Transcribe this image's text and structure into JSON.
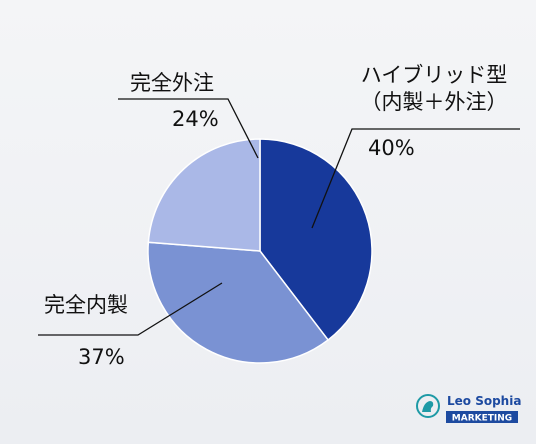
{
  "chart_data": {
    "type": "pie",
    "categories": [
      "ハイブリッド型（内製＋外注）",
      "完全内製",
      "完全外注"
    ],
    "values": [
      40,
      37,
      24
    ],
    "value_labels": [
      "40%",
      "37%",
      "24%"
    ],
    "colors": [
      "#17399b",
      "#7a92d3",
      "#aab8e7"
    ]
  },
  "brand": {
    "name": "Leo Sophia",
    "tagline": "MARKETING"
  }
}
